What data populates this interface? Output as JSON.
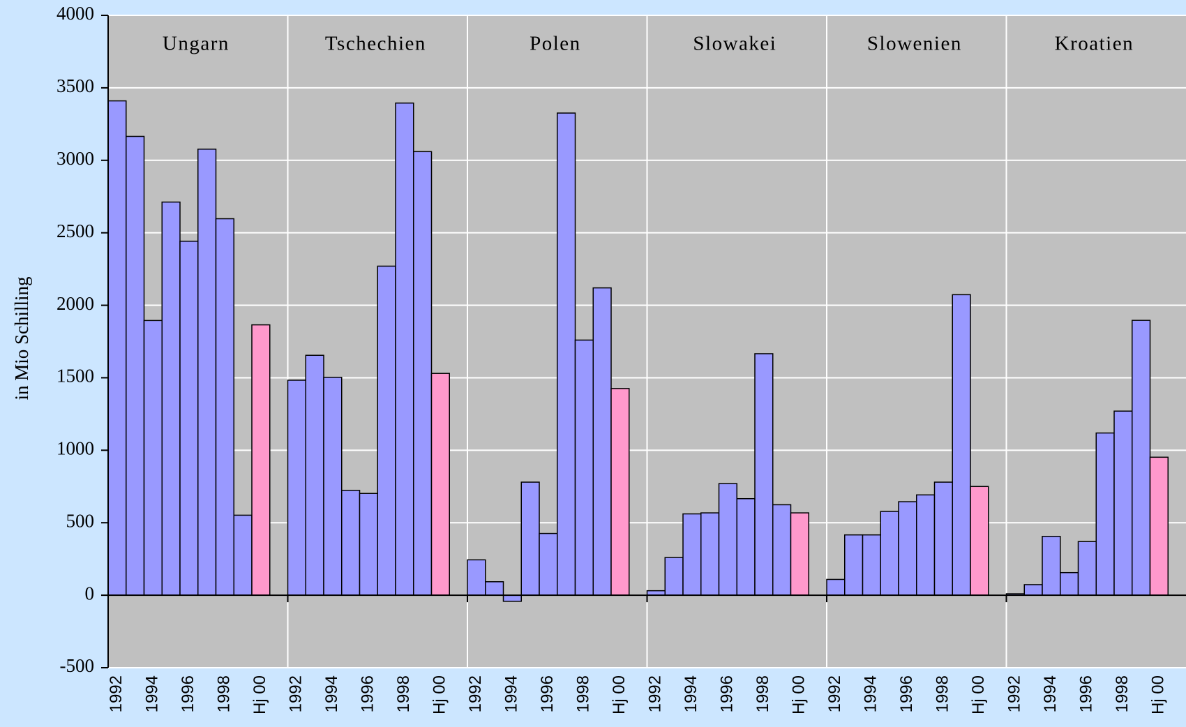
{
  "chart_data": {
    "type": "grouped-bar",
    "y_label": "in Mio Schilling",
    "categories": [
      "1992",
      null,
      "1994",
      null,
      "1996",
      null,
      "1998",
      null,
      "Hj 00"
    ],
    "color": "#9999ff",
    "highlight_color": "#ff99cc",
    "groups": [
      {
        "name": "Ungarn",
        "values": [
          3410,
          3165,
          1895,
          2712,
          2442,
          3077,
          2597,
          552,
          1865
        ]
      },
      {
        "name": "Tschechien",
        "values": [
          1483,
          1655,
          1503,
          723,
          702,
          2270,
          3395,
          3060,
          1530
        ]
      },
      {
        "name": "Polen",
        "values": [
          244,
          93,
          -42,
          780,
          426,
          3326,
          1760,
          2120,
          1426
        ]
      },
      {
        "name": "Slowakei",
        "values": [
          31,
          260,
          561,
          568,
          770,
          666,
          1666,
          624,
          568
        ]
      },
      {
        "name": "Slowenien",
        "values": [
          109,
          416,
          416,
          578,
          645,
          692,
          780,
          2073,
          750
        ]
      },
      {
        "name": "Kroatien",
        "values": [
          10,
          73,
          406,
          156,
          370,
          1119,
          1270,
          1896,
          952
        ]
      }
    ],
    "ylim": [
      -500,
      4000
    ],
    "yticks": [
      -500,
      0,
      500,
      1000,
      1500,
      2000,
      2500,
      3000,
      3500,
      4000
    ],
    "grid": true
  }
}
